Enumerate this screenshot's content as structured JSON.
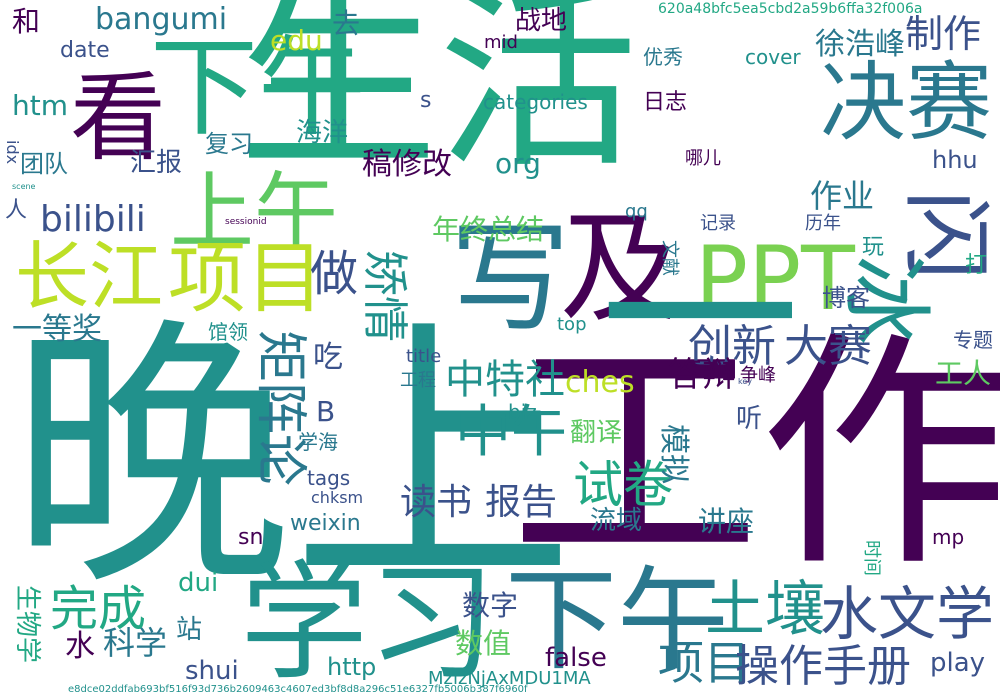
{
  "palette": [
    "#440154",
    "#3b528b",
    "#21918c",
    "#5ec962",
    "#fde725",
    "#2a788e",
    "#22a884",
    "#7ad151",
    "#bddf26"
  ],
  "words": [
    {
      "text": "生活",
      "color": "#22a884",
      "vertical": false
    },
    {
      "text": "晚上",
      "color": "#21918c",
      "vertical": false
    },
    {
      "text": "工作",
      "color": "#440154",
      "vertical": false
    },
    {
      "text": "学习",
      "color": "#21918c",
      "vertical": false
    },
    {
      "text": "下午",
      "color": "#2a788e",
      "vertical": false
    },
    {
      "text": "看",
      "color": "#440154",
      "vertical": false
    },
    {
      "text": "下午",
      "color": "#22a884",
      "vertical": false
    },
    {
      "text": "写",
      "color": "#2a788e",
      "vertical": false
    },
    {
      "text": "及",
      "color": "#440154",
      "vertical": false
    },
    {
      "text": "PPT",
      "color": "#7ad151",
      "vertical": false
    },
    {
      "text": "决赛",
      "color": "#2a788e",
      "vertical": false
    },
    {
      "text": "上午",
      "color": "#5ec962",
      "vertical": false
    },
    {
      "text": "项目",
      "color": "#bddf26",
      "vertical": false
    },
    {
      "text": "长江",
      "color": "#bddf26",
      "vertical": false
    },
    {
      "text": "一",
      "color": "#21918c",
      "vertical": false
    },
    {
      "text": "闪",
      "color": "#3b528b",
      "vertical": true
    },
    {
      "text": "冰",
      "color": "#21918c",
      "vertical": true
    },
    {
      "text": "土壤",
      "color": "#21918c",
      "vertical": false
    },
    {
      "text": "水文学",
      "color": "#3b528b",
      "vertical": false
    },
    {
      "text": "完成",
      "color": "#22a884",
      "vertical": false
    },
    {
      "text": "项目",
      "color": "#2a788e",
      "vertical": false
    },
    {
      "text": "操作手册",
      "color": "#3b528b",
      "vertical": false
    },
    {
      "text": "矩阵论",
      "color": "#2a788e",
      "vertical": true
    },
    {
      "text": "中午",
      "color": "#21918c",
      "vertical": false
    },
    {
      "text": "试卷",
      "color": "#22a884",
      "vertical": false
    },
    {
      "text": "创新",
      "color": "#3b528b",
      "vertical": false
    },
    {
      "text": "大赛",
      "color": "#3b528b",
      "vertical": false
    },
    {
      "text": "做",
      "color": "#3b528b",
      "vertical": false
    },
    {
      "text": "矫情",
      "color": "#21918c",
      "vertical": true
    },
    {
      "text": "中特社",
      "color": "#21918c",
      "vertical": false
    },
    {
      "text": "读书",
      "color": "#3b528b",
      "vertical": false
    },
    {
      "text": "报告",
      "color": "#3b528b",
      "vertical": false
    },
    {
      "text": "bilibili",
      "color": "#3b528b",
      "vertical": false
    },
    {
      "text": "年终总结",
      "color": "#5ec962",
      "vertical": false
    },
    {
      "text": "稿修改",
      "color": "#440154",
      "vertical": false
    },
    {
      "text": "一等奖",
      "color": "#2a788e",
      "vertical": false
    },
    {
      "text": "bangumi",
      "color": "#2a788e",
      "vertical": false
    },
    {
      "text": "作业",
      "color": "#2a788e",
      "vertical": false
    },
    {
      "text": "制作",
      "color": "#3b528b",
      "vertical": false
    },
    {
      "text": "徐浩峰",
      "color": "#2a788e",
      "vertical": false
    },
    {
      "text": "战地",
      "color": "#440154",
      "vertical": false
    },
    {
      "text": "htm",
      "color": "#21918c",
      "vertical": false
    },
    {
      "text": "org",
      "color": "#21918c",
      "vertical": false
    },
    {
      "text": "edu",
      "color": "#bddf26",
      "vertical": false
    },
    {
      "text": "categories",
      "color": "#21918c",
      "vertical": false
    },
    {
      "text": "ches",
      "color": "#bddf26",
      "vertical": false
    },
    {
      "text": "play",
      "color": "#3b528b",
      "vertical": false
    },
    {
      "text": "false",
      "color": "#440154",
      "vertical": false
    },
    {
      "text": "shui",
      "color": "#3b528b",
      "vertical": false
    },
    {
      "text": "http",
      "color": "#21918c",
      "vertical": false
    },
    {
      "text": "数值",
      "color": "#5ec962",
      "vertical": false
    },
    {
      "text": "数字",
      "color": "#3b528b",
      "vertical": false
    },
    {
      "text": "水",
      "color": "#440154",
      "vertical": false
    },
    {
      "text": "科学",
      "color": "#2a788e",
      "vertical": false
    },
    {
      "text": "MzlzNjAxMDU1MA",
      "color": "#21918c",
      "vertical": false
    },
    {
      "text": "团队",
      "color": "#2a788e",
      "vertical": false
    },
    {
      "text": "汇报",
      "color": "#3b528b",
      "vertical": false
    },
    {
      "text": "复习",
      "color": "#2a788e",
      "vertical": false
    },
    {
      "text": "海洋",
      "color": "#21918c",
      "vertical": false
    },
    {
      "text": "答辩",
      "color": "#440154",
      "vertical": false
    },
    {
      "text": "博客",
      "color": "#3b528b",
      "vertical": false
    },
    {
      "text": "吃",
      "color": "#3b528b",
      "vertical": false
    },
    {
      "text": "B",
      "color": "#3b528b",
      "vertical": false
    },
    {
      "text": "工人",
      "color": "#5ec962",
      "vertical": false
    },
    {
      "text": "dui",
      "color": "#22a884",
      "vertical": false
    },
    {
      "text": "去",
      "color": "#2a788e",
      "vertical": false
    },
    {
      "text": "翻译",
      "color": "#5ec962",
      "vertical": false
    },
    {
      "text": "流域",
      "color": "#2a788e",
      "vertical": false
    },
    {
      "text": "讲座",
      "color": "#2a788e",
      "vertical": false
    },
    {
      "text": "模拟",
      "color": "#2a788e",
      "vertical": true
    },
    {
      "text": "生物学",
      "color": "#22a884",
      "vertical": true
    },
    {
      "text": "站",
      "color": "#2a788e",
      "vertical": false
    },
    {
      "text": "weixin",
      "color": "#2a788e",
      "vertical": false
    },
    {
      "text": "tags",
      "color": "#3b528b",
      "vertical": false
    },
    {
      "text": "date",
      "color": "#3b528b",
      "vertical": false
    },
    {
      "text": "hhu",
      "color": "#3b528b",
      "vertical": false
    },
    {
      "text": "mid",
      "color": "#440154",
      "vertical": false
    },
    {
      "text": "cover",
      "color": "#21918c",
      "vertical": false
    },
    {
      "text": "s",
      "color": "#3b528b",
      "vertical": false
    },
    {
      "text": "qq",
      "color": "#2a788e",
      "vertical": false
    },
    {
      "text": "top",
      "color": "#21918c",
      "vertical": false
    },
    {
      "text": "title",
      "color": "#3b528b",
      "vertical": false
    },
    {
      "text": "biz",
      "color": "#21918c",
      "vertical": false
    },
    {
      "text": "sn",
      "color": "#440154",
      "vertical": false
    },
    {
      "text": "chksm",
      "color": "#3b528b",
      "vertical": false
    },
    {
      "text": "mp",
      "color": "#440154",
      "vertical": false
    },
    {
      "text": "和",
      "color": "#440154",
      "vertical": false
    },
    {
      "text": "日志",
      "color": "#440154",
      "vertical": false
    },
    {
      "text": "哪儿",
      "color": "#440154",
      "vertical": false
    },
    {
      "text": "记录",
      "color": "#3b528b",
      "vertical": false
    },
    {
      "text": "历年",
      "color": "#3b528b",
      "vertical": false
    },
    {
      "text": "玩",
      "color": "#21918c",
      "vertical": false
    },
    {
      "text": "打",
      "color": "#22a884",
      "vertical": false
    },
    {
      "text": "专题",
      "color": "#3b528b",
      "vertical": false
    },
    {
      "text": "听",
      "color": "#3b528b",
      "vertical": false
    },
    {
      "text": "优秀",
      "color": "#2a788e",
      "vertical": false
    },
    {
      "text": "馆领",
      "color": "#21918c",
      "vertical": false
    },
    {
      "text": "工程",
      "color": "#2a788e",
      "vertical": false
    },
    {
      "text": "争峰",
      "color": "#440154",
      "vertical": false
    },
    {
      "text": "学海",
      "color": "#2a788e",
      "vertical": false
    },
    {
      "text": "文献",
      "color": "#2a788e",
      "vertical": true
    },
    {
      "text": "时间",
      "color": "#22a884",
      "vertical": true
    },
    {
      "text": "人",
      "color": "#3b528b",
      "vertical": false
    },
    {
      "text": "idx",
      "color": "#3b528b",
      "vertical": true
    },
    {
      "text": "620a48bfc5ea5cbd2a59b6ffa32f006a",
      "color": "#22a884",
      "vertical": false
    },
    {
      "text": "e8dce02ddfab693bf516f93d736b2609463c4607ed3bf8d8a296c51e6327fb5006b387f6960f",
      "color": "#21918c",
      "vertical": false
    },
    {
      "text": "sessionid",
      "color": "#440154",
      "vertical": false
    },
    {
      "text": "key",
      "color": "#3b528b",
      "vertical": false
    },
    {
      "text": "scene",
      "color": "#21918c",
      "vertical": false
    }
  ]
}
